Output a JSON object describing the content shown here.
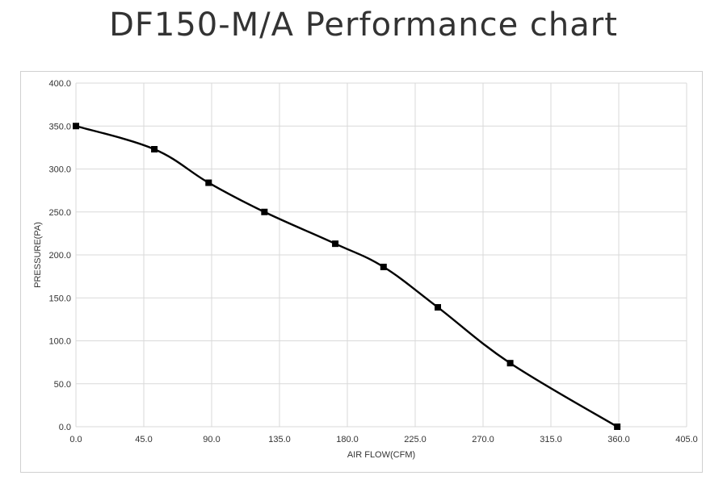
{
  "chart_data": {
    "type": "line",
    "title": "DF150-M/A  Performance chart",
    "xlabel": "AIR FLOW(CFM)",
    "ylabel": "PRESSURE(PA)",
    "xlim": [
      0,
      405
    ],
    "ylim": [
      0,
      400
    ],
    "xticks": [
      "0.0",
      "45.0",
      "90.0",
      "135.0",
      "180.0",
      "225.0",
      "270.0",
      "315.0",
      "360.0",
      "405.0"
    ],
    "yticks": [
      "0.0",
      "50.0",
      "100.0",
      "150.0",
      "200.0",
      "250.0",
      "300.0",
      "350.0",
      "400.0"
    ],
    "grid": true,
    "legend": "none",
    "series": [
      {
        "color": "#000000",
        "marker": "square",
        "points": [
          {
            "x": 0,
            "y": 350
          },
          {
            "x": 52,
            "y": 323
          },
          {
            "x": 88,
            "y": 284
          },
          {
            "x": 125,
            "y": 250
          },
          {
            "x": 172,
            "y": 213
          },
          {
            "x": 204,
            "y": 186
          },
          {
            "x": 240,
            "y": 139
          },
          {
            "x": 288,
            "y": 74
          },
          {
            "x": 359,
            "y": 0
          }
        ]
      }
    ]
  },
  "colors": {
    "grid": "#d9d9d9",
    "line": "#000000",
    "text": "#333333",
    "frame": "#d0d0d0"
  }
}
